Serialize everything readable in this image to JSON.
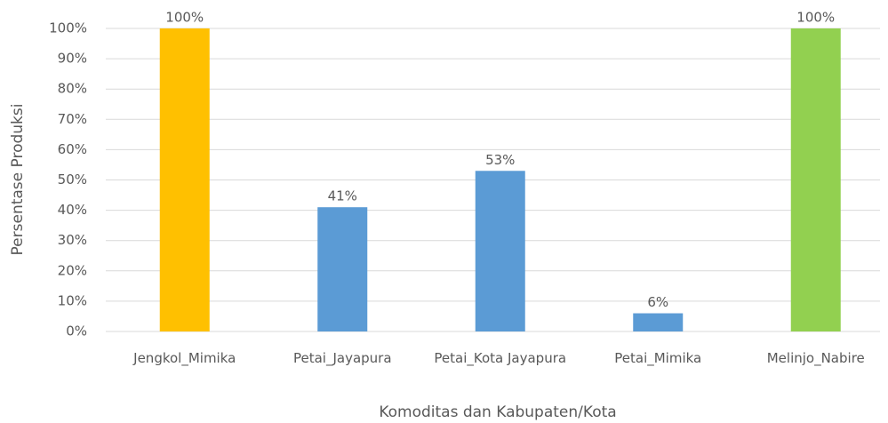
{
  "chart_data": {
    "type": "bar",
    "x_label": "Komoditas dan Kabupaten/Kota",
    "y_label": "Persentase Produksi",
    "categories": [
      "Jengkol_Mimika",
      "Petai_Jayapura",
      "Petai_Kota Jayapura",
      "Petai_Mimika",
      "Melinjo_Nabire"
    ],
    "values": [
      100,
      41,
      53,
      6,
      100
    ],
    "value_labels": [
      "100%",
      "41%",
      "53%",
      "6%",
      "100%"
    ],
    "colors": [
      "#FFC000",
      "#5B9BD5",
      "#5B9BD5",
      "#5B9BD5",
      "#92D050"
    ],
    "ylim": [
      0,
      100
    ],
    "yticks": [
      {
        "value": 0,
        "label": "0%"
      },
      {
        "value": 10,
        "label": "10%"
      },
      {
        "value": 20,
        "label": "20%"
      },
      {
        "value": 30,
        "label": "30%"
      },
      {
        "value": 40,
        "label": "40%"
      },
      {
        "value": 50,
        "label": "50%"
      },
      {
        "value": 60,
        "label": "60%"
      },
      {
        "value": 70,
        "label": "70%"
      },
      {
        "value": 80,
        "label": "80%"
      },
      {
        "value": 90,
        "label": "90%"
      },
      {
        "value": 100,
        "label": "100%"
      }
    ],
    "grid": true
  }
}
